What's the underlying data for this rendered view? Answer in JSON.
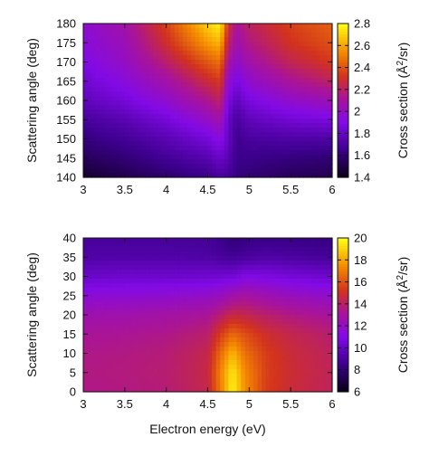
{
  "chart_data": [
    {
      "type": "heatmap",
      "title": "",
      "xlabel": "",
      "ylabel": "Scattering angle (deg)",
      "colorbar_label_prefix": "Cross section (Å",
      "colorbar_label_sup": "2",
      "colorbar_label_suffix": "/sr)",
      "xlim": [
        3,
        6
      ],
      "ylim": [
        140,
        180
      ],
      "zlim": [
        1.4,
        2.8
      ],
      "xticks": [
        "3",
        "3.5",
        "4",
        "4.5",
        "5",
        "5.5",
        "6"
      ],
      "yticks": [
        "140",
        "145",
        "150",
        "155",
        "160",
        "165",
        "170",
        "175",
        "180"
      ],
      "zticks": [
        "1.4",
        "1.6",
        "1.8",
        "2",
        "2.2",
        "2.4",
        "2.6",
        "2.8"
      ],
      "colormap": "gnuplot pm3d (black-purple-red-orange-yellow)",
      "x": [
        3.0,
        3.5,
        4.0,
        4.5,
        4.65,
        4.75,
        4.85,
        5.0,
        5.5,
        6.0
      ],
      "y": [
        140,
        145,
        150,
        155,
        160,
        165,
        170,
        175,
        180
      ],
      "z": [
        [
          1.45,
          1.52,
          1.58,
          1.65,
          1.7,
          1.68,
          1.62,
          1.6,
          1.55,
          1.52
        ],
        [
          1.55,
          1.6,
          1.68,
          1.75,
          1.82,
          1.75,
          1.65,
          1.65,
          1.62,
          1.6
        ],
        [
          1.62,
          1.68,
          1.76,
          1.86,
          1.94,
          1.8,
          1.66,
          1.7,
          1.72,
          1.72
        ],
        [
          1.7,
          1.76,
          1.86,
          2.0,
          2.08,
          1.8,
          1.7,
          1.78,
          1.85,
          1.88
        ],
        [
          1.78,
          1.86,
          1.98,
          2.14,
          2.22,
          1.88,
          1.78,
          1.88,
          1.98,
          2.05
        ],
        [
          1.84,
          1.94,
          2.08,
          2.28,
          2.34,
          1.98,
          1.88,
          1.98,
          2.12,
          2.22
        ],
        [
          1.9,
          2.0,
          2.2,
          2.42,
          2.48,
          2.1,
          1.98,
          2.08,
          2.24,
          2.34
        ],
        [
          1.94,
          2.04,
          2.3,
          2.58,
          2.64,
          2.22,
          2.06,
          2.16,
          2.32,
          2.4
        ],
        [
          1.96,
          2.08,
          2.36,
          2.7,
          2.78,
          2.3,
          2.12,
          2.22,
          2.36,
          2.44
        ]
      ]
    },
    {
      "type": "heatmap",
      "title": "",
      "xlabel": "Electron energy (eV)",
      "ylabel": "Scattering angle (deg)",
      "colorbar_label_prefix": "Cross section (Å",
      "colorbar_label_sup": "2",
      "colorbar_label_suffix": "/sr)",
      "xlim": [
        3,
        6
      ],
      "ylim": [
        0,
        40
      ],
      "zlim": [
        6,
        20
      ],
      "xticks": [
        "3",
        "3.5",
        "4",
        "4.5",
        "5",
        "5.5",
        "6"
      ],
      "yticks": [
        "0",
        "5",
        "10",
        "15",
        "20",
        "25",
        "30",
        "35",
        "40"
      ],
      "zticks": [
        "6",
        "8",
        "10",
        "12",
        "14",
        "16",
        "18",
        "20"
      ],
      "colormap": "gnuplot pm3d (black-purple-red-orange-yellow)",
      "x": [
        3.0,
        3.5,
        4.0,
        4.5,
        4.65,
        4.8,
        4.95,
        5.2,
        5.5,
        6.0
      ],
      "y": [
        0,
        5,
        10,
        15,
        20,
        25,
        30,
        35,
        40
      ],
      "z": [
        [
          13.5,
          13.6,
          13.8,
          14.5,
          17.0,
          19.8,
          17.5,
          15.5,
          14.8,
          14.2
        ],
        [
          13.6,
          13.7,
          13.9,
          14.6,
          17.2,
          19.5,
          17.4,
          15.6,
          14.9,
          14.3
        ],
        [
          13.5,
          13.6,
          13.8,
          14.5,
          16.6,
          18.4,
          16.8,
          15.5,
          14.8,
          14.2
        ],
        [
          13.2,
          13.3,
          13.5,
          14.0,
          15.4,
          16.6,
          15.9,
          15.0,
          14.5,
          13.9
        ],
        [
          12.6,
          12.7,
          12.9,
          13.2,
          13.9,
          14.6,
          14.5,
          14.0,
          13.6,
          13.1
        ],
        [
          11.5,
          11.6,
          11.7,
          11.9,
          12.2,
          12.7,
          13.0,
          12.6,
          12.2,
          11.8
        ],
        [
          10.2,
          10.3,
          10.3,
          10.4,
          10.4,
          10.5,
          11.0,
          10.9,
          10.6,
          10.3
        ],
        [
          9.3,
          9.3,
          9.3,
          9.2,
          9.0,
          8.8,
          9.0,
          9.2,
          9.1,
          8.9
        ],
        [
          8.9,
          8.9,
          8.9,
          8.8,
          8.5,
          8.0,
          8.2,
          8.4,
          8.3,
          8.2
        ]
      ]
    }
  ]
}
